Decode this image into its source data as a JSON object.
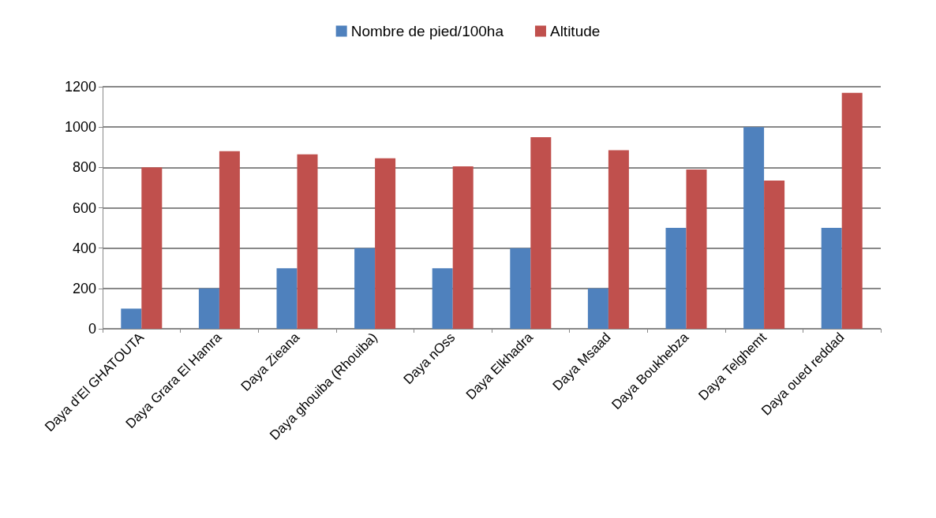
{
  "chart_data": {
    "type": "bar",
    "categories": [
      "Daya d’El GHATOUTA",
      "Daya Grara El Hamra",
      "Daya Zieana",
      "Daya ghouiba (Rhouiba)",
      "Daya nOss",
      "Daya Elkhadra",
      "Daya Msaad",
      "Daya Boukhebza",
      "Daya Telghemt",
      "Daya oued reddad"
    ],
    "series": [
      {
        "name": "Nombre de pied/100ha",
        "color": "#4f81bd",
        "values": [
          100,
          200,
          300,
          400,
          300,
          400,
          200,
          500,
          1000,
          500
        ]
      },
      {
        "name": "Altitude",
        "color": "#c0504d",
        "values": [
          800,
          880,
          865,
          845,
          805,
          950,
          885,
          790,
          735,
          1170
        ]
      }
    ],
    "ylim": [
      0,
      1200
    ],
    "yticks": [
      0,
      200,
      400,
      600,
      800,
      1000,
      1200
    ],
    "grid": "y",
    "legend": "top"
  }
}
